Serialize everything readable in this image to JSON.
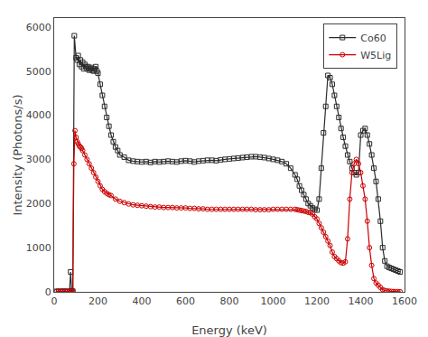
{
  "chart_data": {
    "type": "line",
    "xlabel": "Energy (keV)",
    "ylabel": "Intensity (Photons/s)",
    "xlim": [
      0,
      1600
    ],
    "ylim": [
      0,
      6200
    ],
    "xticks": [
      0,
      200,
      400,
      600,
      800,
      1000,
      1200,
      1400,
      1600
    ],
    "yticks": [
      0,
      1000,
      2000,
      3000,
      4000,
      5000,
      6000
    ],
    "grid": false,
    "legend": "upper right",
    "series": [
      {
        "name": "Co60",
        "color": "#2b2b2b",
        "marker": "square",
        "line_style": "solid",
        "x": [
          10,
          20,
          30,
          40,
          50,
          60,
          70,
          75,
          80,
          85,
          92,
          100,
          105,
          110,
          115,
          120,
          125,
          130,
          135,
          140,
          145,
          150,
          155,
          160,
          165,
          170,
          175,
          180,
          185,
          190,
          195,
          200,
          210,
          220,
          230,
          240,
          250,
          260,
          270,
          280,
          290,
          300,
          320,
          340,
          360,
          380,
          400,
          420,
          440,
          460,
          480,
          500,
          520,
          540,
          560,
          580,
          600,
          620,
          640,
          660,
          680,
          700,
          720,
          740,
          760,
          780,
          800,
          820,
          840,
          860,
          880,
          900,
          920,
          940,
          960,
          980,
          1000,
          1020,
          1040,
          1060,
          1080,
          1100,
          1110,
          1120,
          1130,
          1140,
          1150,
          1160,
          1170,
          1180,
          1190,
          1200,
          1210,
          1220,
          1230,
          1240,
          1250,
          1260,
          1270,
          1280,
          1290,
          1300,
          1310,
          1320,
          1330,
          1340,
          1350,
          1360,
          1370,
          1380,
          1390,
          1400,
          1410,
          1420,
          1430,
          1440,
          1450,
          1460,
          1470,
          1480,
          1490,
          1500,
          1510,
          1520,
          1530,
          1540,
          1550,
          1560,
          1570,
          1580
        ],
        "values": [
          10,
          12,
          8,
          15,
          10,
          12,
          8,
          450,
          25,
          15,
          5800,
          5300,
          5250,
          5350,
          5150,
          5250,
          5100,
          5200,
          5050,
          5150,
          5100,
          5050,
          5100,
          5020,
          5050,
          5080,
          5020,
          5000,
          5050,
          5100,
          5000,
          4950,
          4700,
          4450,
          4200,
          3950,
          3750,
          3550,
          3400,
          3280,
          3200,
          3100,
          3050,
          2980,
          2960,
          2950,
          2940,
          2950,
          2930,
          2950,
          2940,
          2950,
          2960,
          2950,
          2940,
          2960,
          2970,
          2960,
          2940,
          2960,
          2970,
          2980,
          2980,
          2970,
          2990,
          3000,
          3010,
          3020,
          3030,
          3040,
          3050,
          3060,
          3060,
          3050,
          3040,
          3020,
          3000,
          2980,
          2950,
          2900,
          2800,
          2650,
          2550,
          2400,
          2300,
          2200,
          2100,
          2000,
          1950,
          1900,
          1870,
          1850,
          2100,
          2800,
          3600,
          4200,
          4900,
          4850,
          4700,
          4450,
          4200,
          3950,
          3700,
          3500,
          3300,
          3100,
          2950,
          2800,
          2700,
          2650,
          2700,
          3550,
          3650,
          3700,
          3550,
          3350,
          3100,
          2800,
          2500,
          2100,
          1600,
          1000,
          700,
          580,
          550,
          530,
          510,
          490,
          470,
          450
        ]
      },
      {
        "name": "W5Lig",
        "color": "#cc0000",
        "marker": "circle",
        "line_style": "solid",
        "x": [
          10,
          20,
          30,
          40,
          50,
          60,
          70,
          75,
          80,
          85,
          90,
          95,
          100,
          105,
          110,
          115,
          120,
          125,
          130,
          140,
          150,
          160,
          170,
          180,
          190,
          200,
          210,
          220,
          230,
          240,
          250,
          260,
          280,
          300,
          320,
          340,
          360,
          380,
          400,
          420,
          440,
          460,
          480,
          500,
          520,
          540,
          560,
          580,
          600,
          620,
          640,
          660,
          680,
          700,
          720,
          740,
          760,
          780,
          800,
          820,
          840,
          860,
          880,
          900,
          920,
          940,
          960,
          980,
          1000,
          1020,
          1040,
          1060,
          1080,
          1100,
          1110,
          1120,
          1130,
          1140,
          1150,
          1160,
          1170,
          1180,
          1190,
          1200,
          1210,
          1220,
          1230,
          1240,
          1250,
          1260,
          1270,
          1280,
          1290,
          1300,
          1310,
          1320,
          1330,
          1340,
          1350,
          1360,
          1370,
          1380,
          1390,
          1400,
          1410,
          1420,
          1430,
          1440,
          1450,
          1460,
          1470,
          1480,
          1490,
          1500,
          1510,
          1520,
          1530,
          1540,
          1550,
          1560,
          1570,
          1580
        ],
        "values": [
          5,
          8,
          5,
          6,
          5,
          8,
          5,
          10,
          5,
          5,
          2900,
          3650,
          3500,
          3400,
          3350,
          3300,
          3280,
          3250,
          3200,
          3100,
          3000,
          2900,
          2800,
          2700,
          2600,
          2500,
          2400,
          2320,
          2270,
          2230,
          2200,
          2180,
          2100,
          2050,
          2020,
          1990,
          1970,
          1960,
          1950,
          1940,
          1930,
          1920,
          1920,
          1910,
          1910,
          1910,
          1900,
          1900,
          1900,
          1890,
          1890,
          1880,
          1880,
          1870,
          1870,
          1870,
          1870,
          1870,
          1870,
          1870,
          1870,
          1870,
          1870,
          1870,
          1860,
          1860,
          1860,
          1860,
          1870,
          1870,
          1870,
          1870,
          1870,
          1870,
          1860,
          1850,
          1840,
          1830,
          1820,
          1800,
          1790,
          1760,
          1700,
          1650,
          1550,
          1450,
          1350,
          1250,
          1150,
          1050,
          900,
          800,
          750,
          700,
          660,
          650,
          680,
          1200,
          2100,
          2700,
          2900,
          3000,
          2900,
          2700,
          2400,
          2100,
          1600,
          1000,
          600,
          300,
          200,
          150,
          100,
          50,
          30,
          20,
          15,
          10,
          8,
          5,
          5,
          3
        ]
      }
    ]
  }
}
